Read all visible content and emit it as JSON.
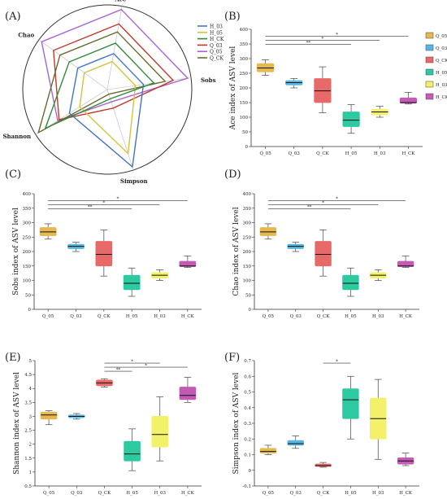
{
  "colors": {
    "Q_05": "#e7b84f",
    "Q_03": "#57b7e0",
    "Q_CK": "#e76a68",
    "H_05": "#2dc9a0",
    "H_03": "#f3f06a",
    "H_CK": "#c35bb4",
    "radar_H_03": "#4273c4",
    "radar_H_05": "#d4c33c",
    "radar_H_CK": "#33883a",
    "radar_Q_03": "#c0392b",
    "radar_Q_05": "#a865d1",
    "radar_Q_CK": "#6b6b2f"
  },
  "chart_data": [
    {
      "panel": "(A)",
      "type": "radar",
      "axes": [
        "Ace",
        "Sobs",
        "Simpson",
        "Shannon",
        "Chao"
      ],
      "legend": [
        "H_03",
        "H_05",
        "H_CK",
        "Q_03",
        "Q_05",
        "Q_CK"
      ],
      "legend_position": "right",
      "series": [
        {
          "name": "Q_05",
          "values": [
            1.0,
            1.0,
            0.16,
            0.72,
            1.0
          ]
        },
        {
          "name": "Q_03",
          "values": [
            0.82,
            0.82,
            0.24,
            0.7,
            0.82
          ]
        },
        {
          "name": "Q_CK",
          "values": [
            0.72,
            0.72,
            0.06,
            1.0,
            0.72
          ]
        },
        {
          "name": "H_05",
          "values": [
            0.35,
            0.35,
            0.83,
            0.4,
            0.35
          ]
        },
        {
          "name": "H_03",
          "values": [
            0.45,
            0.45,
            1.0,
            0.55,
            0.45
          ]
        },
        {
          "name": "H_CK",
          "values": [
            0.58,
            0.58,
            0.12,
            0.9,
            0.58
          ]
        }
      ]
    },
    {
      "panel": "(B)",
      "type": "box",
      "ylabel": "Ace index of ASV level",
      "ylim": [
        0,
        400
      ],
      "yticks": [
        0,
        50,
        100,
        150,
        200,
        250,
        300,
        350,
        400
      ],
      "categories": [
        "Q_05",
        "Q_03",
        "Q_CK",
        "H_05",
        "H_03",
        "H_CK"
      ],
      "boxes": [
        {
          "min": 243,
          "q1": 255,
          "median": 268,
          "q3": 283,
          "max": 296
        },
        {
          "min": 200,
          "q1": 210,
          "median": 218,
          "q3": 225,
          "max": 232
        },
        {
          "min": 115,
          "q1": 150,
          "median": 190,
          "q3": 232,
          "max": 272
        },
        {
          "min": 45,
          "q1": 68,
          "median": 90,
          "q3": 118,
          "max": 143
        },
        {
          "min": 100,
          "q1": 108,
          "median": 118,
          "q3": 127,
          "max": 137
        },
        {
          "min": 145,
          "q1": 148,
          "median": 150,
          "q3": 166,
          "max": 185
        }
      ],
      "brackets": [
        {
          "from": "Q_05",
          "to": "H_CK",
          "label": "*"
        },
        {
          "from": "Q_05",
          "to": "H_03",
          "label": "*"
        },
        {
          "from": "Q_05",
          "to": "H_05",
          "label": "**"
        }
      ],
      "legend": [
        "Q_05",
        "Q_03",
        "Q_CK",
        "H_05",
        "H_03",
        "H_CK"
      ]
    },
    {
      "panel": "(C)",
      "type": "box",
      "ylabel": "Sobs index of ASV level",
      "ylim": [
        0,
        400
      ],
      "yticks": [
        0,
        50,
        100,
        150,
        200,
        250,
        300,
        350,
        400
      ],
      "categories": [
        "Q_05",
        "Q_03",
        "Q_CK",
        "H_05",
        "H_03",
        "H_CK"
      ],
      "boxes": [
        {
          "min": 243,
          "q1": 255,
          "median": 268,
          "q3": 283,
          "max": 296
        },
        {
          "min": 200,
          "q1": 210,
          "median": 218,
          "q3": 225,
          "max": 232
        },
        {
          "min": 115,
          "q1": 150,
          "median": 190,
          "q3": 235,
          "max": 275
        },
        {
          "min": 45,
          "q1": 68,
          "median": 90,
          "q3": 118,
          "max": 143
        },
        {
          "min": 100,
          "q1": 108,
          "median": 118,
          "q3": 127,
          "max": 137
        },
        {
          "min": 145,
          "q1": 148,
          "median": 150,
          "q3": 166,
          "max": 185
        }
      ],
      "brackets": [
        {
          "from": "Q_05",
          "to": "H_CK",
          "label": "*"
        },
        {
          "from": "Q_05",
          "to": "H_03",
          "label": "*"
        },
        {
          "from": "Q_05",
          "to": "H_05",
          "label": "**"
        }
      ]
    },
    {
      "panel": "(D)",
      "type": "box",
      "ylabel": "Chao index of ASV level",
      "ylim": [
        0,
        400
      ],
      "yticks": [
        0,
        50,
        100,
        150,
        200,
        250,
        300,
        350,
        400
      ],
      "categories": [
        "Q_05",
        "Q_03",
        "Q_CK",
        "H_05",
        "H_03",
        "H_CK"
      ],
      "boxes": [
        {
          "min": 243,
          "q1": 255,
          "median": 268,
          "q3": 283,
          "max": 296
        },
        {
          "min": 200,
          "q1": 210,
          "median": 218,
          "q3": 225,
          "max": 232
        },
        {
          "min": 115,
          "q1": 150,
          "median": 190,
          "q3": 235,
          "max": 275
        },
        {
          "min": 45,
          "q1": 68,
          "median": 90,
          "q3": 118,
          "max": 143
        },
        {
          "min": 100,
          "q1": 108,
          "median": 118,
          "q3": 127,
          "max": 137
        },
        {
          "min": 145,
          "q1": 148,
          "median": 150,
          "q3": 166,
          "max": 185
        }
      ],
      "brackets": [
        {
          "from": "Q_05",
          "to": "H_CK",
          "label": "*"
        },
        {
          "from": "Q_05",
          "to": "H_03",
          "label": "*"
        },
        {
          "from": "Q_05",
          "to": "H_05",
          "label": "**"
        }
      ]
    },
    {
      "panel": "(E)",
      "type": "box",
      "ylabel": "Shannon index of ASV level",
      "ylim": [
        0.5,
        5
      ],
      "yticks": [
        0.5,
        1,
        1.5,
        2,
        2.5,
        3,
        3.5,
        4,
        4.5,
        5
      ],
      "categories": [
        "Q_05",
        "Q_03",
        "Q_CK",
        "H_05",
        "H_03",
        "H_CK"
      ],
      "boxes": [
        {
          "min": 2.7,
          "q1": 2.9,
          "median": 3.05,
          "q3": 3.15,
          "max": 3.2
        },
        {
          "min": 2.9,
          "q1": 2.95,
          "median": 3.0,
          "q3": 3.05,
          "max": 3.1
        },
        {
          "min": 4.05,
          "q1": 4.1,
          "median": 4.2,
          "q3": 4.3,
          "max": 4.35
        },
        {
          "min": 1.05,
          "q1": 1.4,
          "median": 1.65,
          "q3": 2.1,
          "max": 2.55
        },
        {
          "min": 1.4,
          "q1": 1.9,
          "median": 2.35,
          "q3": 3.0,
          "max": 3.7
        },
        {
          "min": 3.5,
          "q1": 3.6,
          "median": 3.75,
          "q3": 4.05,
          "max": 4.4
        }
      ],
      "brackets": [
        {
          "from": "Q_CK",
          "to": "H_03",
          "label": "*"
        },
        {
          "from": "Q_CK",
          "to": "H_CK",
          "label": "*"
        },
        {
          "from": "Q_CK",
          "to": "H_05",
          "label": "**"
        }
      ]
    },
    {
      "panel": "(F)",
      "type": "box",
      "ylabel": "Simpson index of ASV level",
      "ylim": [
        -0.1,
        0.7
      ],
      "yticks": [
        -0.1,
        0,
        0.1,
        0.2,
        0.3,
        0.4,
        0.5,
        0.6,
        0.7
      ],
      "categories": [
        "Q_05",
        "Q_03",
        "Q_CK",
        "H_05",
        "H_03",
        "H_CK"
      ],
      "boxes": [
        {
          "min": 0.1,
          "q1": 0.11,
          "median": 0.12,
          "q3": 0.14,
          "max": 0.16
        },
        {
          "min": 0.14,
          "q1": 0.16,
          "median": 0.17,
          "q3": 0.19,
          "max": 0.22
        },
        {
          "min": 0.02,
          "q1": 0.025,
          "median": 0.03,
          "q3": 0.04,
          "max": 0.05
        },
        {
          "min": 0.2,
          "q1": 0.33,
          "median": 0.45,
          "q3": 0.52,
          "max": 0.6
        },
        {
          "min": 0.07,
          "q1": 0.2,
          "median": 0.33,
          "q3": 0.46,
          "max": 0.58
        },
        {
          "min": 0.03,
          "q1": 0.04,
          "median": 0.06,
          "q3": 0.08,
          "max": 0.11
        }
      ],
      "brackets": [
        {
          "from": "Q_CK",
          "to": "H_05",
          "label": "*"
        }
      ]
    }
  ]
}
